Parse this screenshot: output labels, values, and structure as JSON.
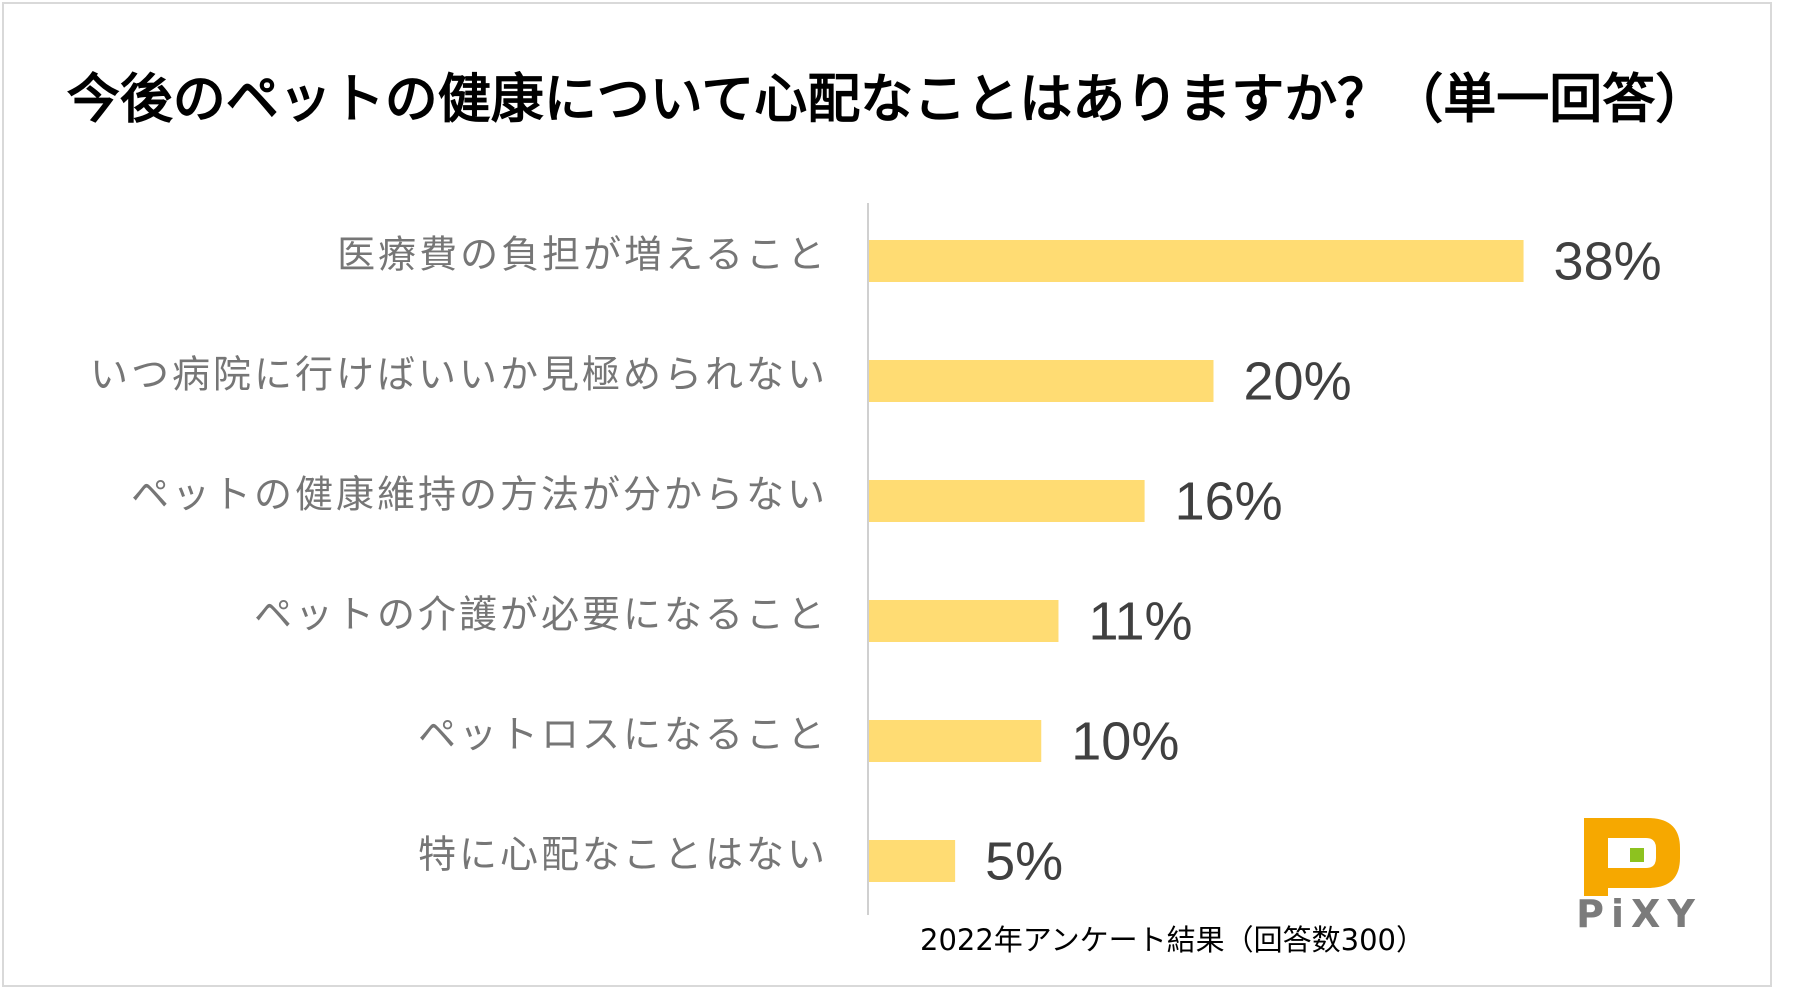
{
  "chart_data": {
    "type": "bar",
    "orientation": "horizontal",
    "title": "今後のペットの健康について心配なことはありますか？（単一回答）",
    "categories": [
      "医療費の負担が増えること",
      "いつ病院に行けばいいか見極められない",
      "ペットの健康維持の方法が分からない",
      "ペットの介護が必要になること",
      "ペットロスになること",
      "特に心配なことはない"
    ],
    "values": [
      38,
      20,
      16,
      11,
      10,
      5
    ],
    "value_labels": [
      "38%",
      "20%",
      "16%",
      "11%",
      "10%",
      "5%"
    ],
    "unit": "%",
    "xlim": [
      0,
      40
    ],
    "bar_color": "#FFDC73",
    "grid": false,
    "legend": "none",
    "footnote": "2022年アンケート結果（回答数300）"
  },
  "logo": {
    "text": "PiXY",
    "color_primary": "#F6A800",
    "color_accent": "#8DC21F",
    "text_color": "#7B7B7B"
  }
}
